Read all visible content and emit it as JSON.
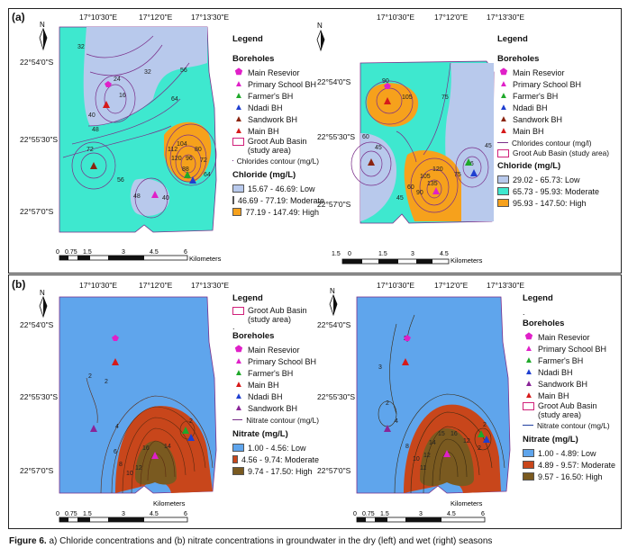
{
  "caption": {
    "prefix": "Figure 6.",
    "text": "a) Chloride concentrations and (b) nitrate concentrations in groundwater in the dry (left) and wet (right) seasons"
  },
  "panels": {
    "a_label": "(a)",
    "b_label": "(b)"
  },
  "coords": {
    "lon1": "17°10'30\"E",
    "lon2": "17°12'0\"E",
    "lon3": "17°13'30\"E",
    "lat1": "22°54'0\"S",
    "lat2": "22°55'30\"S",
    "lat3": "22°57'0\"S",
    "north": "N"
  },
  "scale": {
    "t0": "0",
    "t1": "0.75",
    "t2": "1.5",
    "t3": "3",
    "t4": "4.5",
    "t5": "6",
    "unit": "Kilometers",
    "w_t0": "1.5",
    "w_t1": "0",
    "w_t2": "1.5",
    "w_t3": "3",
    "w_t4": "4.5"
  },
  "legend_common": {
    "title": "Legend",
    "boreholes": "Boreholes",
    "main_reservoir": "Main Resevior",
    "primary_school": "Primary School BH",
    "farmer": "Farmer's BH",
    "ndadi": "Ndadi BH",
    "sandwork": "Sandwork BH",
    "main_bh": "Main BH",
    "basin": "Groot Aub Basin (study area)",
    "basin_b1": "Groot Aub Basin",
    "basin_b2": "(study area)",
    "dot": "."
  },
  "legend_a_dry": {
    "contour": "Chlorides contour (mg/L)",
    "class_title": "Chloride (mg/L)",
    "c1": "15.67 - 46.69: Low",
    "c2": "46.69 - 77.19: Moderate",
    "c3": "77.19 - 147.49: High"
  },
  "legend_a_wet": {
    "contour": "Chlorides contour (mg/l)",
    "class_title": "Chloride (mg/L)",
    "c1": "29.02 - 65.73: Low",
    "c2": "65.73 - 95.93: Moderate",
    "c3": "95.93 - 147.50: High"
  },
  "legend_b_dry": {
    "contour": "Nitrate contour (mg/L)",
    "class_title": "Nitrate (mg/L)",
    "c1": "1.00 - 4.56: Low",
    "c2": "4.56 - 9.74: Moderate",
    "c3": "9.74 - 17.50: High"
  },
  "legend_b_wet": {
    "contour": "Nitrate contour (mg/L)",
    "class_title": "Nitrate (mg/L)",
    "c1": "1.00 - 4.89: Low",
    "c2": "4.89 - 9.57: Moderate",
    "c3": "9.57 - 16.50: High"
  },
  "colors": {
    "cl_low": "#b8c9ec",
    "cl_mod": "#3ee8cf",
    "cl_high": "#f6a11c",
    "no_low": "#5fa5ec",
    "no_mod": "#c8461b",
    "no_high": "#7a5a20",
    "contour": "#7a2f8a"
  },
  "contour_labels": {
    "a_dry": [
      "32",
      "24",
      "16",
      "40",
      "48",
      "56",
      "64",
      "72",
      "56",
      "48",
      "40",
      "104",
      "112",
      "120",
      "96",
      "88",
      "80",
      "72",
      "64",
      "32"
    ],
    "a_wet": [
      "90",
      "105",
      "75",
      "60",
      "45",
      "45",
      "60",
      "90",
      "105",
      "120",
      "135",
      "36",
      "45",
      "75"
    ],
    "b_dry": [
      "2",
      "4",
      "2",
      "6",
      "8",
      "10",
      "12",
      "16",
      "14",
      "2"
    ],
    "b_wet": [
      "2",
      "3",
      "2",
      "4",
      "2",
      "8",
      "10",
      "11",
      "12",
      "14",
      "15",
      "16",
      "12",
      "2"
    ]
  }
}
